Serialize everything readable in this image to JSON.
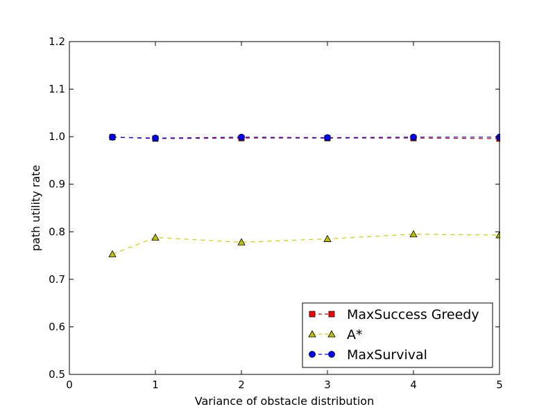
{
  "chart_data": {
    "type": "line",
    "xlabel": "Variance of obstacle distribution",
    "ylabel": "path utility rate",
    "xlim": [
      0,
      5
    ],
    "ylim": [
      0.5,
      1.2
    ],
    "x_ticks": [
      0,
      1,
      2,
      3,
      4,
      5
    ],
    "x_tick_labels": [
      "0",
      "1",
      "2",
      "3",
      "4",
      "5"
    ],
    "y_ticks": [
      0.5,
      0.6,
      0.7,
      0.8,
      0.9,
      1.0,
      1.1,
      1.2
    ],
    "y_tick_labels": [
      "0.5",
      "0.6",
      "0.7",
      "0.8",
      "0.9",
      "1.0",
      "1.1",
      "1.2"
    ],
    "grid": false,
    "legend_position": "lower-right",
    "x": [
      0.5,
      1,
      2,
      3,
      4,
      5
    ],
    "series": [
      {
        "name": "MaxSuccess Greedy",
        "values": [
          0.999,
          0.996,
          0.997,
          0.997,
          0.997,
          0.996
        ],
        "color": "#ff0000",
        "line_color": "#c00000",
        "marker": "square",
        "linestyle": "dashed"
      },
      {
        "name": "A*",
        "values": [
          0.753,
          0.788,
          0.778,
          0.785,
          0.795,
          0.793
        ],
        "color": "#bfbf00",
        "line_color": "#cccc00",
        "marker": "triangle",
        "linestyle": "dashed"
      },
      {
        "name": "MaxSurvival",
        "values": [
          0.999,
          0.997,
          0.999,
          0.998,
          0.999,
          0.999
        ],
        "color": "#0000ff",
        "line_color": "#0000ff",
        "marker": "circle",
        "linestyle": "dashed"
      }
    ]
  }
}
